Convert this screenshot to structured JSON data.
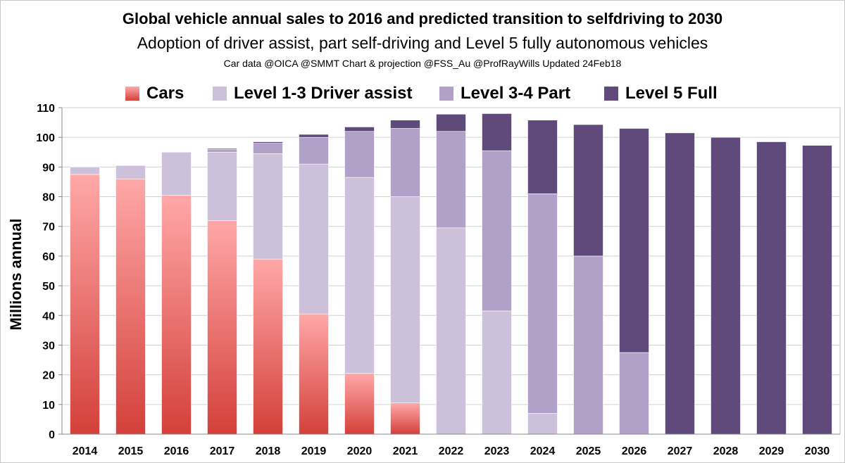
{
  "chart_data": {
    "type": "bar",
    "stacked": true,
    "title": "Global vehicle annual sales to 2016 and predicted transition to selfdriving to 2030",
    "subtitle": "Adoption of driver assist, part self-driving and Level 5 fully autonomous vehicles",
    "credit": "Car data @OICA @SMMT  Chart & projection @FSS_Au  @ProfRayWills Updated 24Feb18",
    "xlabel": "",
    "ylabel": "Millions annual",
    "ylim": [
      0,
      110
    ],
    "yticks": [
      0,
      10,
      20,
      30,
      40,
      50,
      60,
      70,
      80,
      90,
      100,
      110
    ],
    "grid": true,
    "legend_position": "top",
    "categories": [
      "2014",
      "2015",
      "2016",
      "2017",
      "2018",
      "2019",
      "2020",
      "2021",
      "2022",
      "2023",
      "2024",
      "2025",
      "2026",
      "2027",
      "2028",
      "2029",
      "2030"
    ],
    "series": [
      {
        "name": "Cars",
        "color_top": "#ffa8a8",
        "color_bottom": "#d4403a",
        "values": [
          87.5,
          86,
          80.5,
          72,
          59,
          40.5,
          20.5,
          10.5,
          0,
          0,
          0,
          0,
          0,
          0,
          0,
          0,
          0
        ]
      },
      {
        "name": "Level 1-3 Driver assist",
        "color": "#ccc0da",
        "values": [
          2.5,
          4.5,
          14.5,
          23,
          35.5,
          50.5,
          66,
          69.5,
          69.5,
          41.5,
          7,
          0,
          0,
          0,
          0,
          0,
          0
        ]
      },
      {
        "name": "Level 3-4 Part",
        "color": "#b1a0c7",
        "values": [
          0,
          0,
          0,
          1,
          3.5,
          9,
          15.5,
          23,
          32.5,
          54,
          74,
          60,
          27.5,
          0,
          0,
          0,
          0
        ]
      },
      {
        "name": "Level 5 Full",
        "color": "#604a7b",
        "values": [
          0,
          0,
          0,
          0.3,
          0.5,
          1,
          1.5,
          2.8,
          5.8,
          12.5,
          24.8,
          44.3,
          75.5,
          101.5,
          100,
          98.5,
          97.3
        ]
      }
    ]
  }
}
